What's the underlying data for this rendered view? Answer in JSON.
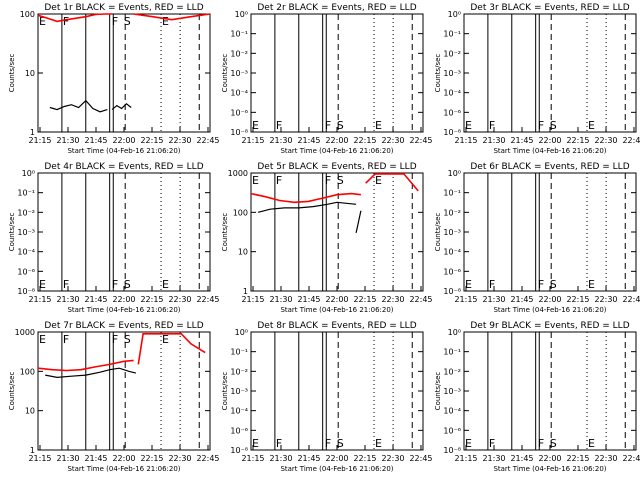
{
  "chart_data": {
    "type": "line",
    "grid": false,
    "legend": "none",
    "colors": {
      "events": "#000000",
      "lld": "#ff0000"
    },
    "x_ticks": [
      "21:15",
      "21:30",
      "21:45",
      "22:00",
      "22:15",
      "22:30",
      "22:45"
    ],
    "x_range_min": [
      0,
      48
    ],
    "xlabel": "Start Time (04-Feb-16 21:06:20)",
    "ylabel": "Counts/sec",
    "markers": [
      {
        "label": "E",
        "t": 0,
        "style": "solid"
      },
      {
        "label": "F",
        "t": 10,
        "style": "solid"
      },
      {
        "label": "F",
        "t": 30.5,
        "style": "solid"
      },
      {
        "label": "S",
        "t": 35.5,
        "style": "dashed"
      },
      {
        "label": "E",
        "t": 51.5,
        "style": "dotted"
      }
    ],
    "marker_lines": [
      {
        "t": 0,
        "style": "solid"
      },
      {
        "t": 10,
        "style": "solid"
      },
      {
        "t": 20,
        "style": "solid"
      },
      {
        "t": 30,
        "style": "solid"
      },
      {
        "t": 31.5,
        "style": "solid"
      },
      {
        "t": 36.5,
        "style": "dashed"
      },
      {
        "t": 51.5,
        "style": "dotted"
      },
      {
        "t": 59.5,
        "style": "dotted"
      },
      {
        "t": 67.5,
        "style": "dashed"
      }
    ],
    "panels": [
      {
        "title": "Det 1r BLACK = Events, RED = LLD",
        "log_range": [
          0,
          2
        ],
        "y_ticks": [
          "1",
          "10",
          "100"
        ],
        "series": [
          {
            "color": "#ff0000",
            "x": [
              0,
              4,
              8,
              12,
              16,
              20,
              24,
              28,
              31
            ],
            "y": [
              95,
              85,
              75,
              80,
              85,
              90,
              98,
              100,
              100
            ]
          },
          {
            "color": "#ff0000",
            "x": [
              40,
              44,
              48,
              52,
              56,
              60,
              64,
              68,
              72
            ],
            "y": [
              100,
              95,
              90,
              85,
              80,
              85,
              90,
              95,
              100
            ]
          },
          {
            "color": "#000000",
            "x": [
              5,
              8,
              11,
              14,
              17,
              20,
              23,
              26,
              29
            ],
            "y": [
              2.6,
              2.4,
              2.7,
              2.9,
              2.6,
              3.4,
              2.5,
              2.2,
              2.4
            ]
          },
          {
            "color": "#000000",
            "x": [
              31,
              33,
              35,
              37,
              39
            ],
            "y": [
              2.4,
              2.8,
              2.5,
              3.0,
              2.6
            ]
          }
        ]
      },
      {
        "title": "Det 2r BLACK = Events, RED = LLD",
        "log_range": [
          -8,
          0
        ],
        "y_ticks": [
          "10⁻⁸",
          "10⁻⁶",
          "10⁻⁴",
          "10⁻³",
          "10⁻²",
          "10⁻¹",
          "10⁰"
        ],
        "series": []
      },
      {
        "title": "Det 3r BLACK = Events, RED = LLD",
        "log_range": [
          -8,
          0
        ],
        "y_ticks": [
          "10⁻⁸",
          "10⁻⁶",
          "10⁻⁴",
          "10⁻³",
          "10⁻²",
          "10⁻¹",
          "10⁰"
        ],
        "series": []
      },
      {
        "title": "Det 4r BLACK = Events, RED = LLD",
        "log_range": [
          -8,
          0
        ],
        "y_ticks": [
          "10⁻⁸",
          "10⁻⁶",
          "10⁻⁴",
          "10⁻³",
          "10⁻²",
          "10⁻¹",
          "10⁰"
        ],
        "series": []
      },
      {
        "title": "Det 5r BLACK = Events, RED = LLD",
        "log_range": [
          0,
          3
        ],
        "y_ticks": [
          "1",
          "10",
          "100",
          "1000"
        ],
        "series": [
          {
            "color": "#ff0000",
            "x": [
              0,
              6,
              12,
              18,
              24,
              30,
              36,
              42,
              46
            ],
            "y": [
              300,
              250,
              200,
              180,
              190,
              230,
              280,
              300,
              280
            ]
          },
          {
            "color": "#ff0000",
            "x": [
              48,
              52,
              56,
              60,
              64,
              70
            ],
            "y": [
              550,
              950,
              950,
              950,
              950,
              350
            ]
          },
          {
            "color": "#000000",
            "x": [
              3,
              8,
              14,
              20,
              26,
              32,
              36,
              40,
              44
            ],
            "y": [
              100,
              120,
              130,
              130,
              140,
              160,
              180,
              170,
              160
            ]
          },
          {
            "color": "#000000",
            "x": [
              44,
              46
            ],
            "y": [
              30,
              110
            ]
          }
        ]
      },
      {
        "title": "Det 6r BLACK = Events, RED = LLD",
        "log_range": [
          -8,
          0
        ],
        "y_ticks": [
          "10⁻⁸",
          "10⁻⁶",
          "10⁻⁴",
          "10⁻³",
          "10⁻²",
          "10⁻¹",
          "10⁰"
        ],
        "series": []
      },
      {
        "title": "Det 7r BLACK = Events, RED = LLD",
        "log_range": [
          0,
          3
        ],
        "y_ticks": [
          "1",
          "10",
          "100",
          "1000"
        ],
        "series": [
          {
            "color": "#ff0000",
            "x": [
              0,
              6,
              12,
              18,
              24,
              30,
              36,
              40
            ],
            "y": [
              120,
              110,
              105,
              110,
              130,
              150,
              180,
              190
            ]
          },
          {
            "color": "#ff0000",
            "x": [
              42,
              44,
              52,
              56,
              60,
              64,
              70
            ],
            "y": [
              150,
              900,
              900,
              900,
              900,
              500,
              300
            ]
          },
          {
            "color": "#000000",
            "x": [
              3,
              8,
              14,
              20,
              26,
              30,
              34,
              38,
              41
            ],
            "y": [
              80,
              70,
              75,
              80,
              95,
              110,
              120,
              100,
              90
            ]
          }
        ]
      },
      {
        "title": "Det 8r BLACK = Events, RED = LLD",
        "log_range": [
          -8,
          0
        ],
        "y_ticks": [
          "10⁻⁸",
          "10⁻⁶",
          "10⁻⁴",
          "10⁻³",
          "10⁻²",
          "10⁻¹",
          "10⁰"
        ],
        "series": []
      },
      {
        "title": "Det 9r BLACK = Events, RED = LLD",
        "log_range": [
          -8,
          0
        ],
        "y_ticks": [
          "10⁻⁸",
          "10⁻⁶",
          "10⁻⁴",
          "10⁻³",
          "10⁻²",
          "10⁻¹",
          "10⁰"
        ],
        "series": []
      }
    ]
  }
}
